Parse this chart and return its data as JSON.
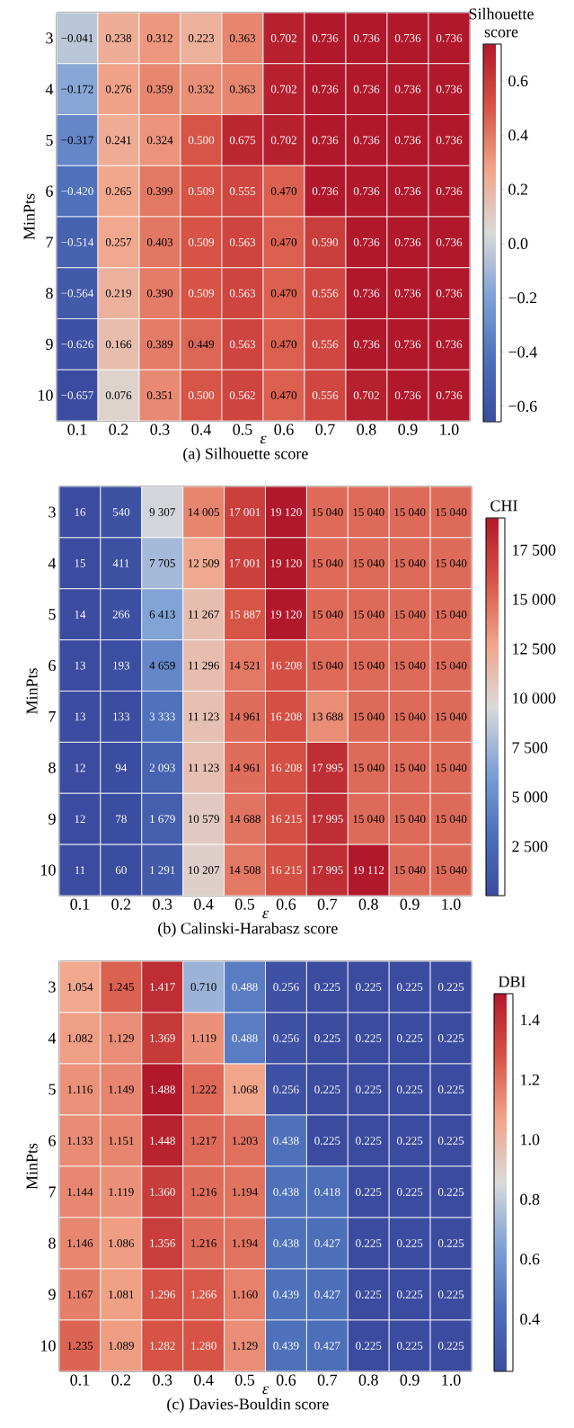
{
  "chart_data": [
    {
      "type": "heatmap",
      "title": "(a) Silhouette score",
      "xlabel": "ε",
      "ylabel": "MinPts",
      "clabel": "Silhouette score",
      "categories": [
        "0.1",
        "0.2",
        "0.3",
        "0.4",
        "0.5",
        "0.6",
        "0.7",
        "0.8",
        "0.9",
        "1.0"
      ],
      "y_categories": [
        "3",
        "4",
        "5",
        "6",
        "7",
        "8",
        "9",
        "10"
      ],
      "cells": [
        [
          -0.041,
          0.238,
          0.312,
          0.223,
          0.363,
          0.702,
          0.736,
          0.736,
          0.736,
          0.736
        ],
        [
          -0.172,
          0.276,
          0.359,
          0.332,
          0.363,
          0.702,
          0.736,
          0.736,
          0.736,
          0.736
        ],
        [
          -0.317,
          0.241,
          0.324,
          0.5,
          0.675,
          0.702,
          0.736,
          0.736,
          0.736,
          0.736
        ],
        [
          -0.42,
          0.265,
          0.399,
          0.509,
          0.555,
          0.47,
          0.736,
          0.736,
          0.736,
          0.736
        ],
        [
          -0.514,
          0.257,
          0.403,
          0.509,
          0.563,
          0.47,
          0.59,
          0.736,
          0.736,
          0.736
        ],
        [
          -0.564,
          0.219,
          0.39,
          0.509,
          0.563,
          0.47,
          0.556,
          0.736,
          0.736,
          0.736
        ],
        [
          -0.626,
          0.166,
          0.389,
          0.449,
          0.563,
          0.47,
          0.556,
          0.736,
          0.736,
          0.736
        ],
        [
          -0.657,
          0.076,
          0.351,
          0.5,
          0.562,
          0.47,
          0.556,
          0.702,
          0.736,
          0.736
        ]
      ],
      "cell_labels": [
        [
          "−0.041",
          "0.238",
          "0.312",
          "0.223",
          "0.363",
          "0.702",
          "0.736",
          "0.736",
          "0.736",
          "0.736"
        ],
        [
          "−0.172",
          "0.276",
          "0.359",
          "0.332",
          "0.363",
          "0.702",
          "0.736",
          "0.736",
          "0.736",
          "0.736"
        ],
        [
          "−0.317",
          "0.241",
          "0.324",
          "0.500",
          "0.675",
          "0.702",
          "0.736",
          "0.736",
          "0.736",
          "0.736"
        ],
        [
          "−0.420",
          "0.265",
          "0.399",
          "0.509",
          "0.555",
          "0.470",
          "0.736",
          "0.736",
          "0.736",
          "0.736"
        ],
        [
          "−0.514",
          "0.257",
          "0.403",
          "0.509",
          "0.563",
          "0.470",
          "0.590",
          "0.736",
          "0.736",
          "0.736"
        ],
        [
          "−0.564",
          "0.219",
          "0.390",
          "0.509",
          "0.563",
          "0.470",
          "0.556",
          "0.736",
          "0.736",
          "0.736"
        ],
        [
          "−0.626",
          "0.166",
          "0.389",
          "0.449",
          "0.563",
          "0.470",
          "0.556",
          "0.736",
          "0.736",
          "0.736"
        ],
        [
          "−0.657",
          "0.076",
          "0.351",
          "0.500",
          "0.562",
          "0.470",
          "0.556",
          "0.702",
          "0.736",
          "0.736"
        ]
      ],
      "clim": [
        -0.657,
        0.736
      ],
      "cticks": [
        {
          "value": -0.6,
          "label": "−0.6"
        },
        {
          "value": -0.4,
          "label": "−0.4"
        },
        {
          "value": -0.2,
          "label": "−0.2"
        },
        {
          "value": 0,
          "label": "0.0"
        },
        0.2,
        0.4,
        0.6
      ]
    },
    {
      "type": "heatmap",
      "title": "(b) Calinski-Harabasz score",
      "xlabel": "ε",
      "ylabel": "MinPts",
      "clabel": "CHI",
      "categories": [
        "0.1",
        "0.2",
        "0.3",
        "0.4",
        "0.5",
        "0.6",
        "0.7",
        "0.8",
        "0.9",
        "1.0"
      ],
      "y_categories": [
        "3",
        "4",
        "5",
        "6",
        "7",
        "8",
        "9",
        "10"
      ],
      "cells": [
        [
          16,
          540,
          9307,
          14005,
          17001,
          19120,
          15040,
          15040,
          15040,
          15040
        ],
        [
          15,
          411,
          7705,
          12509,
          17001,
          19120,
          15040,
          15040,
          15040,
          15040
        ],
        [
          14,
          266,
          6413,
          11267,
          15887,
          19120,
          15040,
          15040,
          15040,
          15040
        ],
        [
          13,
          193,
          4659,
          11296,
          14521,
          16208,
          15040,
          15040,
          15040,
          15040
        ],
        [
          13,
          133,
          3333,
          11123,
          14961,
          16208,
          13688,
          15040,
          15040,
          15040
        ],
        [
          12,
          94,
          2093,
          11123,
          14961,
          16208,
          17995,
          15040,
          15040,
          15040
        ],
        [
          12,
          78,
          1679,
          10579,
          14688,
          16215,
          17995,
          15040,
          15040,
          15040
        ],
        [
          11,
          60,
          1291,
          10207,
          14508,
          16215,
          17995,
          19112,
          15040,
          15040
        ]
      ],
      "cell_labels": [
        [
          "16",
          "540",
          "9 307",
          "14 005",
          "17 001",
          "19 120",
          "15 040",
          "15 040",
          "15 040",
          "15 040"
        ],
        [
          "15",
          "411",
          "7 705",
          "12 509",
          "17 001",
          "19 120",
          "15 040",
          "15 040",
          "15 040",
          "15 040"
        ],
        [
          "14",
          "266",
          "6 413",
          "11 267",
          "15 887",
          "19 120",
          "15 040",
          "15 040",
          "15 040",
          "15 040"
        ],
        [
          "13",
          "193",
          "4 659",
          "11 296",
          "14 521",
          "16 208",
          "15 040",
          "15 040",
          "15 040",
          "15 040"
        ],
        [
          "13",
          "133",
          "3 333",
          "11 123",
          "14 961",
          "16 208",
          "13 688",
          "15 040",
          "15 040",
          "15 040"
        ],
        [
          "12",
          "94",
          "2 093",
          "11 123",
          "14 961",
          "16 208",
          "17 995",
          "15 040",
          "15 040",
          "15 040"
        ],
        [
          "12",
          "78",
          "1 679",
          "10 579",
          "14 688",
          "16 215",
          "17 995",
          "15 040",
          "15 040",
          "15 040"
        ],
        [
          "11",
          "60",
          "1 291",
          "10 207",
          "14 508",
          "16 215",
          "17 995",
          "19 112",
          "15 040",
          "15 040"
        ]
      ],
      "clim": [
        11,
        19120
      ],
      "cticks": [
        {
          "value": 2500,
          "label": "2 500"
        },
        {
          "value": 5000,
          "label": "5 000"
        },
        {
          "value": 7500,
          "label": "7 500"
        },
        {
          "value": 10000,
          "label": "10 000"
        },
        {
          "value": 12500,
          "label": "12 500"
        },
        {
          "value": 15000,
          "label": "15 000"
        },
        {
          "value": 17500,
          "label": "17 500"
        }
      ]
    },
    {
      "type": "heatmap",
      "title": "(c) Davies-Bouldin score",
      "xlabel": "ε",
      "ylabel": "MinPts",
      "clabel": "DBI",
      "categories": [
        "0.1",
        "0.2",
        "0.3",
        "0.4",
        "0.5",
        "0.6",
        "0.7",
        "0.8",
        "0.9",
        "1.0"
      ],
      "y_categories": [
        "3",
        "4",
        "5",
        "6",
        "7",
        "8",
        "9",
        "10"
      ],
      "cells": [
        [
          1.054,
          1.245,
          1.417,
          0.71,
          0.488,
          0.256,
          0.225,
          0.225,
          0.225,
          0.225
        ],
        [
          1.082,
          1.129,
          1.369,
          1.119,
          0.488,
          0.256,
          0.225,
          0.225,
          0.225,
          0.225
        ],
        [
          1.116,
          1.149,
          1.488,
          1.222,
          1.068,
          0.256,
          0.225,
          0.225,
          0.225,
          0.225
        ],
        [
          1.133,
          1.151,
          1.448,
          1.217,
          1.203,
          0.438,
          0.225,
          0.225,
          0.225,
          0.225
        ],
        [
          1.144,
          1.119,
          1.36,
          1.216,
          1.194,
          0.438,
          0.418,
          0.225,
          0.225,
          0.225
        ],
        [
          1.146,
          1.086,
          1.356,
          1.216,
          1.194,
          0.438,
          0.427,
          0.225,
          0.225,
          0.225
        ],
        [
          1.167,
          1.081,
          1.296,
          1.266,
          1.16,
          0.439,
          0.427,
          0.225,
          0.225,
          0.225
        ],
        [
          1.235,
          1.089,
          1.282,
          1.28,
          1.129,
          0.439,
          0.427,
          0.225,
          0.225,
          0.225
        ]
      ],
      "cell_labels": [
        [
          "1.054",
          "1.245",
          "1.417",
          "0.710",
          "0.488",
          "0.256",
          "0.225",
          "0.225",
          "0.225",
          "0.225"
        ],
        [
          "1.082",
          "1.129",
          "1.369",
          "1.119",
          "0.488",
          "0.256",
          "0.225",
          "0.225",
          "0.225",
          "0.225"
        ],
        [
          "1.116",
          "1.149",
          "1.488",
          "1.222",
          "1.068",
          "0.256",
          "0.225",
          "0.225",
          "0.225",
          "0.225"
        ],
        [
          "1.133",
          "1.151",
          "1.448",
          "1.217",
          "1.203",
          "0.438",
          "0.225",
          "0.225",
          "0.225",
          "0.225"
        ],
        [
          "1.144",
          "1.119",
          "1.360",
          "1.216",
          "1.194",
          "0.438",
          "0.418",
          "0.225",
          "0.225",
          "0.225"
        ],
        [
          "1.146",
          "1.086",
          "1.356",
          "1.216",
          "1.194",
          "0.438",
          "0.427",
          "0.225",
          "0.225",
          "0.225"
        ],
        [
          "1.167",
          "1.081",
          "1.296",
          "1.266",
          "1.160",
          "0.439",
          "0.427",
          "0.225",
          "0.225",
          "0.225"
        ],
        [
          "1.235",
          "1.089",
          "1.282",
          "1.280",
          "1.129",
          "0.439",
          "0.427",
          "0.225",
          "0.225",
          "0.225"
        ]
      ],
      "clim": [
        0.225,
        1.488
      ],
      "cticks": [
        0.4,
        0.6,
        0.8,
        {
          "value": 1,
          "label": "1.0"
        },
        1.2,
        1.4
      ]
    }
  ]
}
